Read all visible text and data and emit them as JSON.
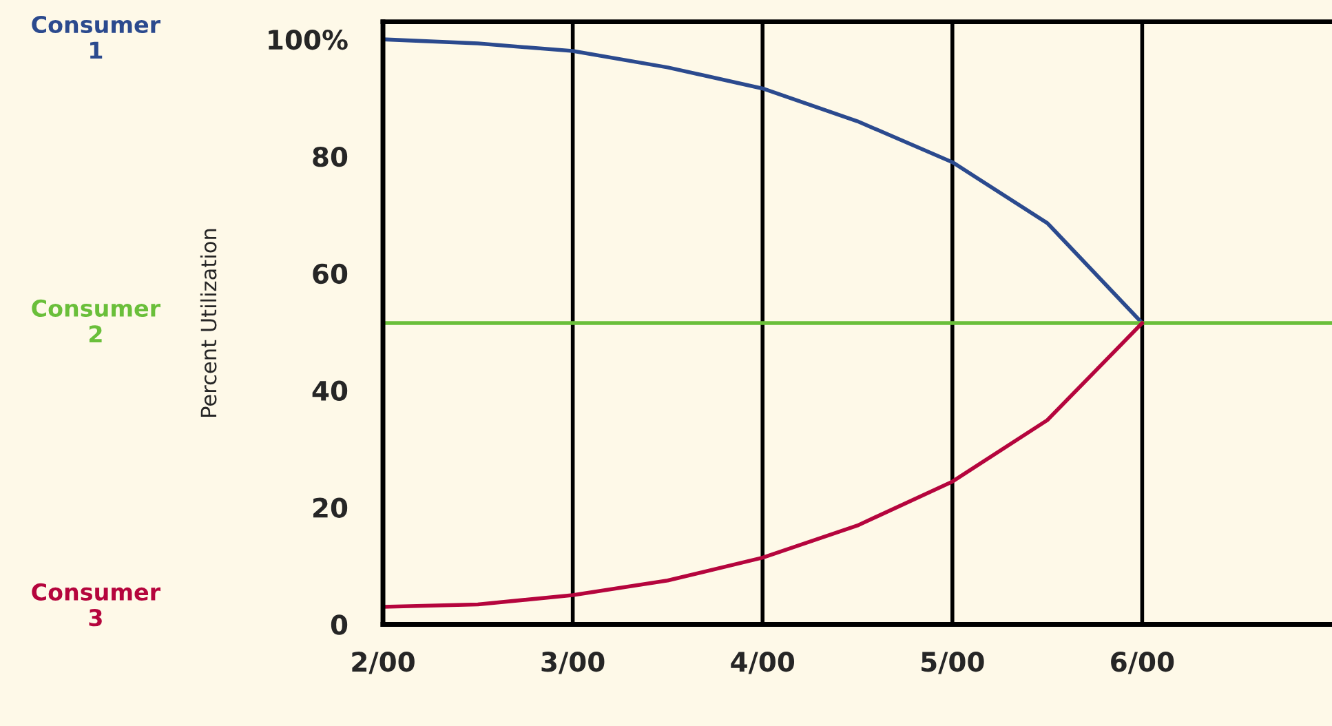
{
  "chart_data": {
    "type": "line",
    "ylabel": "Percent Utilization",
    "grid": "x",
    "legend": false,
    "marker": "none",
    "line_style": "solid",
    "categories": [
      "2/00",
      null,
      "3/00",
      null,
      "4/00",
      null,
      "5/00",
      null,
      "6/00",
      null,
      null
    ],
    "ylim": [
      0,
      103
    ],
    "yticks": [
      0,
      20,
      40,
      60,
      80,
      {
        "value": 100,
        "label": "100%"
      }
    ],
    "series": [
      {
        "name": "Consumer 1",
        "color": "#2b4a8e",
        "values": [
          100,
          99.3,
          98,
          95.2,
          91.6,
          86,
          79,
          68.6,
          51.5,
          null,
          null
        ]
      },
      {
        "name": "Consumer 2",
        "color": "#6abf3a",
        "values": [
          51.5,
          51.5,
          51.5,
          51.5,
          51.5,
          51.5,
          51.5,
          51.5,
          51.5,
          51.5,
          51.5
        ]
      },
      {
        "name": "Consumer 3",
        "color": "#b5053d",
        "values": [
          3,
          3.4,
          5,
          7.5,
          11.4,
          16.9,
          24.4,
          34.9,
          51.5,
          null,
          null
        ]
      }
    ]
  }
}
